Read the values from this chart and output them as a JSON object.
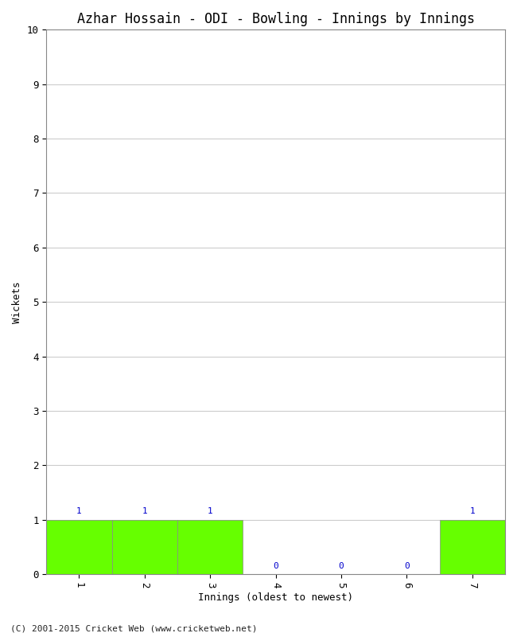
{
  "title": "Azhar Hossain - ODI - Bowling - Innings by Innings",
  "xlabel": "Innings (oldest to newest)",
  "ylabel": "Wickets",
  "categories": [
    "1",
    "2",
    "3",
    "4",
    "5",
    "6",
    "7"
  ],
  "values": [
    1,
    1,
    1,
    0,
    0,
    0,
    1
  ],
  "bar_color": "#66ff00",
  "bar_edge_color": "#888888",
  "ylim": [
    0,
    10
  ],
  "yticks": [
    0,
    1,
    2,
    3,
    4,
    5,
    6,
    7,
    8,
    9,
    10
  ],
  "label_color": "#0000cc",
  "background_color": "#ffffff",
  "plot_bg_color": "#ffffff",
  "grid_color": "#cccccc",
  "title_fontsize": 12,
  "axis_label_fontsize": 9,
  "tick_fontsize": 9,
  "bar_label_fontsize": 8,
  "footer": "(C) 2001-2015 Cricket Web (www.cricketweb.net)",
  "footer_fontsize": 8
}
